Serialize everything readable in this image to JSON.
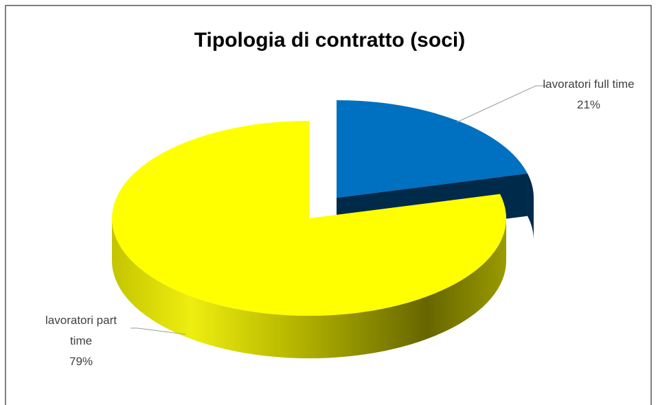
{
  "chart_data": {
    "type": "pie3d",
    "title": "Tipologia di contratto (soci)",
    "categories": [
      "lavoratori full time",
      "lavoratori part time"
    ],
    "values": [
      21,
      79
    ],
    "value_labels": [
      "21%",
      "79%"
    ],
    "colors": [
      "#0070c0",
      "#ffff00"
    ]
  }
}
